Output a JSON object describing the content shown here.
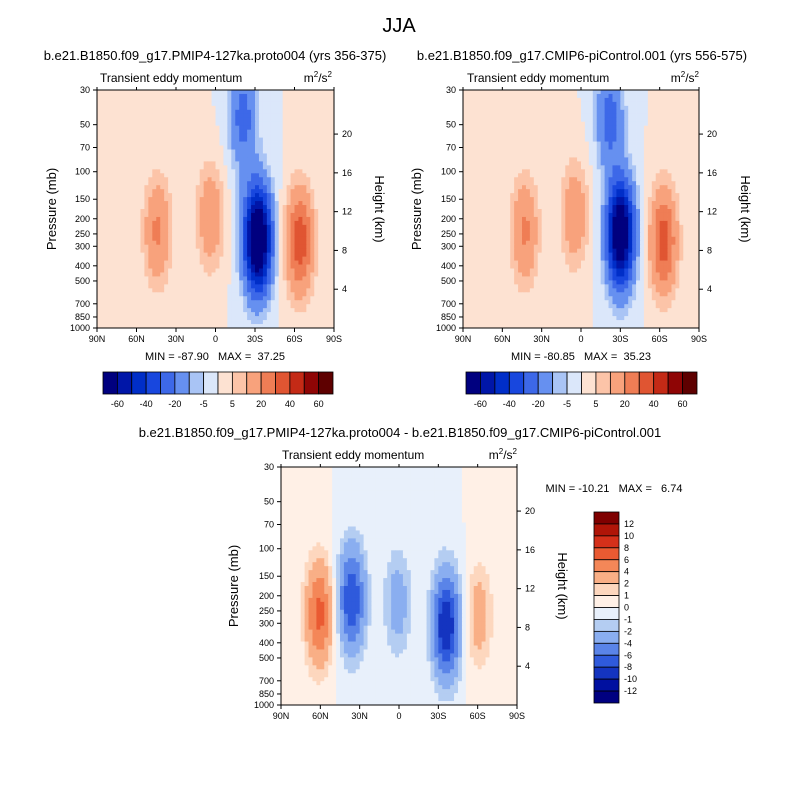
{
  "season": "JJA",
  "panels": [
    {
      "id": "top-left",
      "case_title": "b.e21.B1850.f09_g17.PMIP4-127ka.proto004 (yrs 356-375)",
      "variable": "Transient eddy momentum",
      "units_base": "m",
      "units_exp": "2",
      "units_den": "/s",
      "stats": "MIN = -87.90   MAX =  37.25"
    },
    {
      "id": "top-right",
      "case_title": "b.e21.B1850.f09_g17.CMIP6-piControl.001 (yrs 556-575)",
      "variable": "Transient eddy momentum",
      "units_base": "m",
      "units_exp": "2",
      "units_den": "/s",
      "stats": "MIN = -80.85   MAX =  35.23"
    },
    {
      "id": "bottom-diff",
      "case_title": "b.e21.B1850.f09_g17.PMIP4-127ka.proto004 - b.e21.B1850.f09_g17.CMIP6-piControl.001",
      "variable": "Transient eddy momentum",
      "units_base": "m",
      "units_exp": "2",
      "units_den": "/s",
      "stats": "MIN = -10.21   MAX =   6.74"
    }
  ],
  "chart_data": [
    {
      "type": "heatmap",
      "title": "b.e21.B1850.f09_g17.PMIP4-127ka.proto004 (yrs 356-375)",
      "xlabel": "",
      "ylabel": "Pressure (mb)",
      "y2label": "Height (km)",
      "x_ticks": [
        "90N",
        "60N",
        "30N",
        "0",
        "30S",
        "60S",
        "90S"
      ],
      "y_ticks": [
        30,
        50,
        70,
        100,
        150,
        200,
        250,
        300,
        400,
        500,
        700,
        850,
        1000
      ],
      "y2_ticks": [
        4,
        8,
        12,
        16,
        20
      ],
      "ylim": [
        1000,
        30
      ],
      "min": -87.9,
      "max": 37.25,
      "levels": [
        -60,
        -50,
        -40,
        -30,
        -20,
        -10,
        -5,
        0,
        5,
        10,
        20,
        30,
        40,
        50,
        60
      ],
      "features": [
        {
          "lat": -32,
          "p": 270,
          "value": -87.9
        },
        {
          "lat": -21,
          "p": 45,
          "value": -25
        },
        {
          "lat": 44,
          "p": 240,
          "value": 22
        },
        {
          "lat": 4,
          "p": 195,
          "value": 18
        },
        {
          "lat": -64,
          "p": 280,
          "value": 37.25
        }
      ]
    },
    {
      "type": "heatmap",
      "title": "b.e21.B1850.f09_g17.CMIP6-piControl.001 (yrs 556-575)",
      "xlabel": "",
      "ylabel": "Pressure (mb)",
      "y2label": "Height (km)",
      "x_ticks": [
        "90N",
        "60N",
        "30N",
        "0",
        "30S",
        "60S",
        "90S"
      ],
      "y_ticks": [
        30,
        50,
        70,
        100,
        150,
        200,
        250,
        300,
        400,
        500,
        700,
        850,
        1000
      ],
      "y2_ticks": [
        4,
        8,
        12,
        16,
        20
      ],
      "ylim": [
        1000,
        30
      ],
      "min": -80.85,
      "max": 35.23,
      "levels": [
        -60,
        -50,
        -40,
        -30,
        -20,
        -10,
        -5,
        0,
        5,
        10,
        20,
        30,
        40,
        50,
        60
      ],
      "features": [
        {
          "lat": -30,
          "p": 250,
          "value": -80.85
        },
        {
          "lat": -22,
          "p": 45,
          "value": -25
        },
        {
          "lat": 43,
          "p": 240,
          "value": 22
        },
        {
          "lat": 5,
          "p": 190,
          "value": 18
        },
        {
          "lat": -63,
          "p": 280,
          "value": 35.23
        }
      ]
    },
    {
      "type": "heatmap",
      "title": "b.e21.B1850.f09_g17.PMIP4-127ka.proto004 - b.e21.B1850.f09_g17.CMIP6-piControl.001",
      "xlabel": "",
      "ylabel": "Pressure (mb)",
      "y2label": "Height (km)",
      "x_ticks": [
        "90N",
        "60N",
        "30N",
        "0",
        "30S",
        "60S",
        "90S"
      ],
      "y_ticks": [
        30,
        50,
        70,
        100,
        150,
        200,
        250,
        300,
        400,
        500,
        700,
        850,
        1000
      ],
      "y2_ticks": [
        4,
        8,
        12,
        16,
        20
      ],
      "ylim": [
        1000,
        30
      ],
      "min": -10.21,
      "max": 6.74,
      "levels": [
        -12,
        -10,
        -8,
        -6,
        -4,
        -2,
        -1,
        0,
        1,
        2,
        4,
        6,
        8,
        10,
        12
      ],
      "features": [
        {
          "lat": 61,
          "p": 260,
          "value": 6.74
        },
        {
          "lat": 36,
          "p": 210,
          "value": -8
        },
        {
          "lat": -36,
          "p": 310,
          "value": -10.21
        },
        {
          "lat": -61,
          "p": 270,
          "value": 3
        },
        {
          "lat": 1,
          "p": 220,
          "value": -3
        }
      ]
    }
  ],
  "colorbars": [
    {
      "id": "top-left-colorbar",
      "orientation": "horizontal",
      "levels": [
        -60,
        -50,
        -40,
        -30,
        -20,
        -10,
        -5,
        0,
        5,
        10,
        20,
        30,
        40,
        50,
        60
      ],
      "labels": [
        "-60",
        "-40",
        "-20",
        "-5",
        "5",
        "20",
        "40",
        "60"
      ],
      "colors": [
        "#00007f",
        "#0016a8",
        "#002ec8",
        "#1847de",
        "#3d68e8",
        "#6690f0",
        "#a9c4f5",
        "#dbe7fa",
        "#fde2d2",
        "#fcc4a8",
        "#f8a27c",
        "#ef7d55",
        "#e05532",
        "#c42a16",
        "#8f0505",
        "#5e0000"
      ]
    },
    {
      "id": "top-right-colorbar",
      "orientation": "horizontal",
      "levels": [
        -60,
        -50,
        -40,
        -30,
        -20,
        -10,
        -5,
        0,
        5,
        10,
        20,
        30,
        40,
        50,
        60
      ],
      "labels": [
        "-60",
        "-40",
        "-20",
        "-5",
        "5",
        "20",
        "40",
        "60"
      ],
      "colors": [
        "#00007f",
        "#0016a8",
        "#002ec8",
        "#1847de",
        "#3d68e8",
        "#6690f0",
        "#a9c4f5",
        "#dbe7fa",
        "#fde2d2",
        "#fcc4a8",
        "#f8a27c",
        "#ef7d55",
        "#e05532",
        "#c42a16",
        "#8f0505",
        "#5e0000"
      ]
    },
    {
      "id": "diff-colorbar",
      "orientation": "vertical",
      "levels": [
        12,
        10,
        8,
        6,
        4,
        2,
        1,
        0,
        -1,
        -2,
        -4,
        -6,
        -8,
        -10,
        -12
      ],
      "labels": [
        "12",
        "10",
        "8",
        "6",
        "4",
        "2",
        "1",
        "0",
        "-1",
        "-2",
        "-4",
        "-6",
        "-8",
        "-10",
        "-12"
      ],
      "colors": [
        "#7f0000",
        "#b01508",
        "#d5301a",
        "#ea5a32",
        "#f48758",
        "#f9af86",
        "#fdd7be",
        "#fff0e6",
        "#e8f0fb",
        "#b4cdf2",
        "#8aaef0",
        "#5a84e8",
        "#2f5adc",
        "#1434c0",
        "#0010a0",
        "#000080"
      ]
    }
  ]
}
